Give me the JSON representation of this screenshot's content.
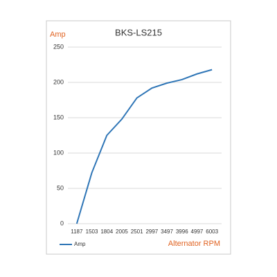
{
  "chart_data": {
    "type": "line",
    "title": "BKS-LS215",
    "y_label": "Amp",
    "x_label": "Alternator RPM",
    "categories": [
      "1187",
      "1503",
      "1804",
      "2005",
      "2501",
      "2997",
      "3497",
      "3996",
      "4997",
      "6003"
    ],
    "series": [
      {
        "name": "Amp",
        "color": "#2e75b6",
        "values": [
          0,
          72,
          125,
          148,
          178,
          192,
          199,
          204,
          212,
          218
        ]
      }
    ],
    "ylim": [
      0,
      250
    ],
    "yticks": [
      0,
      50,
      100,
      150,
      200,
      250
    ],
    "grid": true,
    "legend": "bottom-left"
  }
}
